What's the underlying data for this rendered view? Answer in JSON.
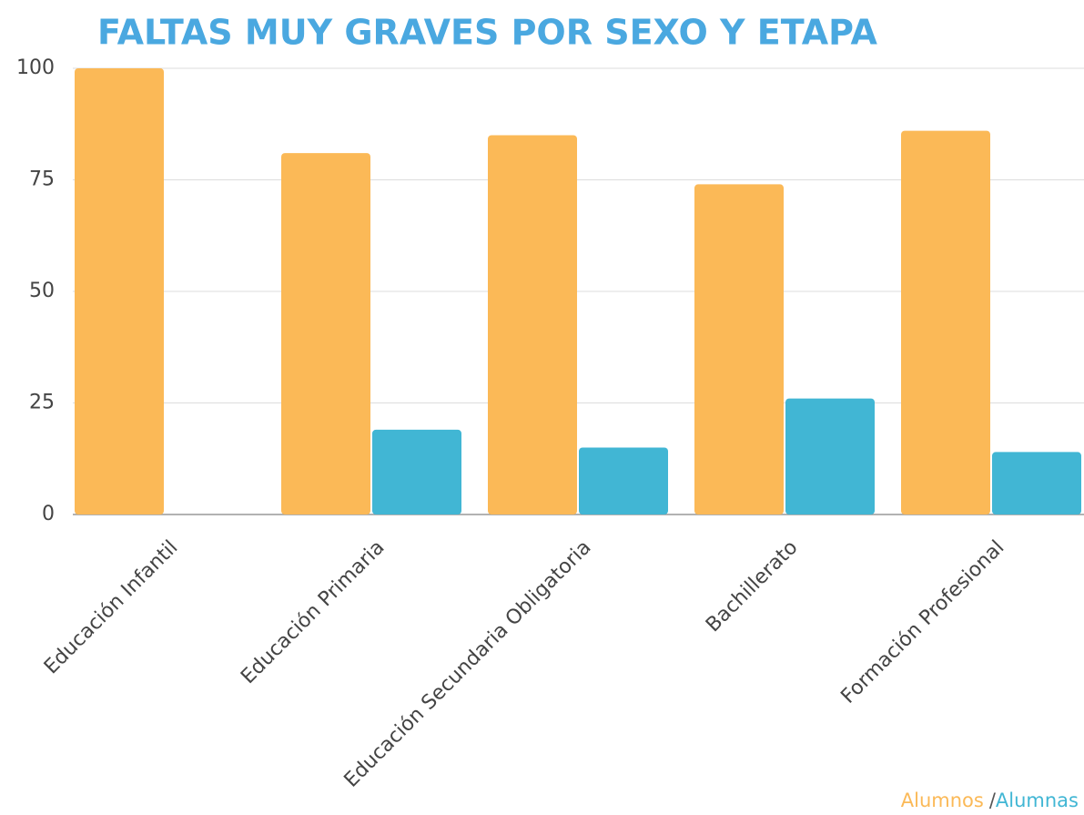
{
  "chart_data": {
    "type": "bar",
    "title": "FALTAS MUY GRAVES POR SEXO Y ETAPA",
    "categories": [
      "Educación Infantil",
      "Educación Primaria",
      "Educación Secundaria Obligatoria",
      "Bachillerato",
      "Formación Profesional"
    ],
    "series": [
      {
        "name": "Alumnos",
        "color": "#fbb957",
        "values": [
          100,
          81,
          85,
          74,
          86
        ]
      },
      {
        "name": "Alumnas",
        "color": "#41b6d4",
        "values": [
          0,
          19,
          15,
          26,
          14
        ]
      }
    ],
    "legend_separator": "/",
    "ylim": [
      0,
      100
    ],
    "yticks": [
      0,
      25,
      50,
      75,
      100
    ],
    "grid": true
  }
}
